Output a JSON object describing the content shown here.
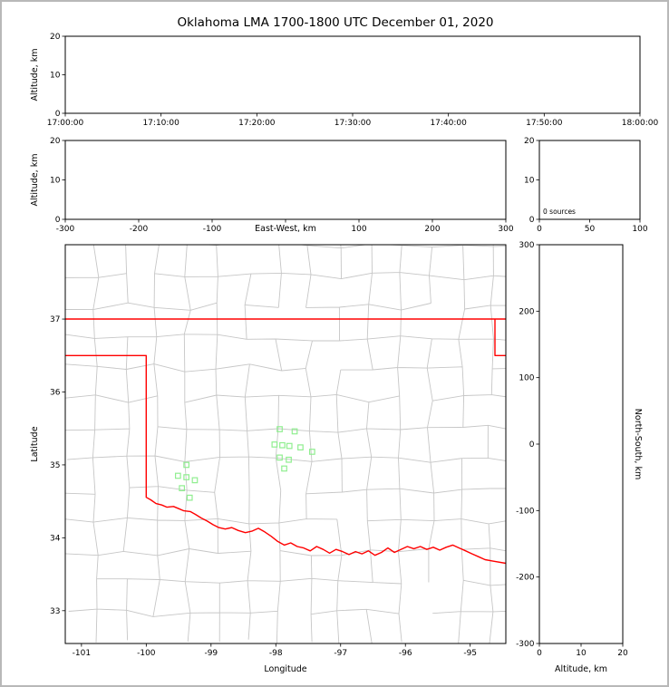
{
  "title": "Oklahoma LMA 1700-1800 UTC December 01, 2020",
  "colors": {
    "background": "#ffffff",
    "frame_border": "#b8b8b8",
    "axis": "#000000",
    "county_line": "#c6c6c6",
    "state_border": "#ff0000",
    "station_marker": "#90ee90"
  },
  "chart_data": [
    {
      "id": "time-altitude-panel",
      "type": "scatter",
      "title": "",
      "xlabel": "",
      "ylabel": "Altitude, km",
      "xlim": [
        0,
        6
      ],
      "ylim": [
        0,
        20
      ],
      "grid": false,
      "xticks": [
        {
          "v": 0,
          "label": "17:00:00"
        },
        {
          "v": 1,
          "label": "17:10:00"
        },
        {
          "v": 2,
          "label": "17:20:00"
        },
        {
          "v": 3,
          "label": "17:30:00"
        },
        {
          "v": 4,
          "label": "17:40:00"
        },
        {
          "v": 5,
          "label": "17:50:00"
        },
        {
          "v": 6,
          "label": "18:00:00"
        }
      ],
      "yticks": [
        {
          "v": 0,
          "label": "0"
        },
        {
          "v": 10,
          "label": "10"
        },
        {
          "v": 20,
          "label": "20"
        }
      ],
      "points": []
    },
    {
      "id": "eastwest-altitude-panel",
      "type": "scatter",
      "xlabel": "East-West, km",
      "ylabel": "Altitude, km",
      "xlim": [
        -300,
        300
      ],
      "ylim": [
        0,
        20
      ],
      "grid": false,
      "xticks": [
        {
          "v": -300,
          "label": "-300"
        },
        {
          "v": -200,
          "label": "-200"
        },
        {
          "v": -100,
          "label": "-100"
        },
        {
          "v": 0,
          "label": ""
        },
        {
          "v": 100,
          "label": "100"
        },
        {
          "v": 200,
          "label": "200"
        },
        {
          "v": 300,
          "label": "300"
        }
      ],
      "yticks": [
        {
          "v": 0,
          "label": "0"
        },
        {
          "v": 10,
          "label": "10"
        },
        {
          "v": 20,
          "label": "20"
        }
      ],
      "points": []
    },
    {
      "id": "altitude-histogram-panel",
      "type": "scatter",
      "annotation": "0 sources",
      "xlim": [
        0,
        100
      ],
      "ylim": [
        0,
        20
      ],
      "grid": false,
      "xticks": [
        {
          "v": 0,
          "label": "0"
        },
        {
          "v": 50,
          "label": "50"
        },
        {
          "v": 100,
          "label": "100"
        }
      ],
      "yticks": [
        {
          "v": 0,
          "label": "0"
        },
        {
          "v": 10,
          "label": "10"
        },
        {
          "v": 20,
          "label": "20"
        }
      ],
      "points": []
    },
    {
      "id": "plan-view-map",
      "type": "scatter",
      "xlabel": "Longitude",
      "ylabel": "Latitude",
      "xlim": [
        -101.25,
        -94.45
      ],
      "ylim": [
        32.55,
        38.02
      ],
      "grid": false,
      "xticks": [
        {
          "v": -101,
          "label": "-101"
        },
        {
          "v": -100,
          "label": "-100"
        },
        {
          "v": -99,
          "label": "-99"
        },
        {
          "v": -98,
          "label": "-98"
        },
        {
          "v": -97,
          "label": "-97"
        },
        {
          "v": -96,
          "label": "-96"
        },
        {
          "v": -95,
          "label": "-95"
        }
      ],
      "yticks": [
        {
          "v": 33,
          "label": "33"
        },
        {
          "v": 34,
          "label": "34"
        },
        {
          "v": 35,
          "label": "35"
        },
        {
          "v": 36,
          "label": "36"
        },
        {
          "v": 37,
          "label": "37"
        }
      ],
      "stations": [
        [
          -97.94,
          35.49
        ],
        [
          -97.71,
          35.46
        ],
        [
          -98.02,
          35.28
        ],
        [
          -97.9,
          35.27
        ],
        [
          -97.79,
          35.26
        ],
        [
          -97.62,
          35.24
        ],
        [
          -97.44,
          35.18
        ],
        [
          -97.94,
          35.1
        ],
        [
          -97.8,
          35.07
        ],
        [
          -97.87,
          34.95
        ],
        [
          -99.38,
          35.0
        ],
        [
          -99.51,
          34.85
        ],
        [
          -99.38,
          34.83
        ],
        [
          -99.25,
          34.79
        ],
        [
          -99.45,
          34.68
        ],
        [
          -99.33,
          34.55
        ]
      ],
      "state_border": [
        [
          [
            -101.25,
            37.0
          ],
          [
            -94.45,
            37.0
          ]
        ],
        [
          [
            -94.618,
            37.0
          ],
          [
            -94.618,
            36.5
          ],
          [
            -94.45,
            36.5
          ]
        ],
        [
          [
            -101.25,
            36.5
          ],
          [
            -100.0,
            36.5
          ],
          [
            -100.0,
            34.555
          ],
          [
            -99.93,
            34.52
          ],
          [
            -99.85,
            34.47
          ],
          [
            -99.76,
            34.45
          ],
          [
            -99.68,
            34.42
          ],
          [
            -99.58,
            34.43
          ],
          [
            -99.5,
            34.4
          ],
          [
            -99.42,
            34.37
          ],
          [
            -99.32,
            34.36
          ],
          [
            -99.24,
            34.32
          ],
          [
            -99.15,
            34.27
          ],
          [
            -99.06,
            34.23
          ],
          [
            -98.97,
            34.18
          ],
          [
            -98.88,
            34.14
          ],
          [
            -98.78,
            34.12
          ],
          [
            -98.68,
            34.14
          ],
          [
            -98.58,
            34.1
          ],
          [
            -98.47,
            34.07
          ],
          [
            -98.37,
            34.09
          ],
          [
            -98.27,
            34.13
          ],
          [
            -98.17,
            34.08
          ],
          [
            -98.07,
            34.02
          ],
          [
            -97.97,
            33.95
          ],
          [
            -97.87,
            33.9
          ],
          [
            -97.77,
            33.93
          ],
          [
            -97.67,
            33.88
          ],
          [
            -97.57,
            33.86
          ],
          [
            -97.47,
            33.82
          ],
          [
            -97.37,
            33.88
          ],
          [
            -97.27,
            33.84
          ],
          [
            -97.17,
            33.79
          ],
          [
            -97.07,
            33.84
          ],
          [
            -96.97,
            33.81
          ],
          [
            -96.87,
            33.77
          ],
          [
            -96.77,
            33.81
          ],
          [
            -96.67,
            33.78
          ],
          [
            -96.57,
            33.82
          ],
          [
            -96.47,
            33.76
          ],
          [
            -96.37,
            33.8
          ],
          [
            -96.27,
            33.86
          ],
          [
            -96.17,
            33.8
          ],
          [
            -96.07,
            33.84
          ],
          [
            -95.97,
            33.88
          ],
          [
            -95.87,
            33.85
          ],
          [
            -95.77,
            33.88
          ],
          [
            -95.67,
            33.84
          ],
          [
            -95.57,
            33.87
          ],
          [
            -95.47,
            33.83
          ],
          [
            -95.37,
            33.87
          ],
          [
            -95.27,
            33.9
          ],
          [
            -95.17,
            33.86
          ],
          [
            -95.07,
            33.82
          ],
          [
            -94.97,
            33.78
          ],
          [
            -94.87,
            33.74
          ],
          [
            -94.77,
            33.7
          ],
          [
            -94.65,
            33.68
          ],
          [
            -94.45,
            33.65
          ]
        ]
      ],
      "county_grid": {
        "seed": 7,
        "dlon": 0.47,
        "dlat": 0.42,
        "jitter": 0.055,
        "skip": 0.12
      },
      "points": []
    },
    {
      "id": "altitude-northsouth-panel",
      "type": "scatter",
      "xlabel": "Altitude, km",
      "ylabel_right": "North-South, km",
      "xlim": [
        0,
        20
      ],
      "ylim": [
        -300,
        300
      ],
      "grid": false,
      "xticks": [
        {
          "v": 0,
          "label": "0"
        },
        {
          "v": 10,
          "label": "10"
        },
        {
          "v": 20,
          "label": "20"
        }
      ],
      "yticks": [
        {
          "v": -300,
          "label": "-300"
        },
        {
          "v": -200,
          "label": "-200"
        },
        {
          "v": -100,
          "label": "-100"
        },
        {
          "v": 0,
          "label": "0"
        },
        {
          "v": 100,
          "label": "100"
        },
        {
          "v": 200,
          "label": "200"
        },
        {
          "v": 300,
          "label": "300"
        }
      ],
      "points": []
    }
  ]
}
